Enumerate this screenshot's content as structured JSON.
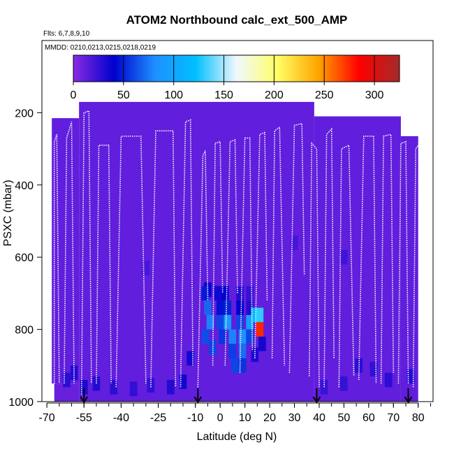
{
  "chart_data": {
    "type": "heatmap",
    "title": "ATOM2 Northbound calc_ext_500_AMP",
    "flights_note": "Flts: 6,7,8,9,10",
    "dates_note": "MMDD: 0210,0213,0215,0218,0219",
    "xlabel": "Latitude (deg N)",
    "ylabel": "PSXC (mbar)",
    "xlim": [
      -72,
      86
    ],
    "ylim": [
      1000,
      0
    ],
    "x_ticks": [
      -70,
      -55,
      -40,
      -25,
      -10,
      0,
      10,
      20,
      30,
      40,
      50,
      60,
      70,
      80
    ],
    "x_tick_labels": [
      "-70",
      "-55",
      "-40",
      "-25",
      "-10",
      "0",
      "10",
      "20",
      "30",
      "40",
      "50",
      "60",
      "70",
      "80"
    ],
    "y_ticks": [
      200,
      400,
      600,
      800,
      1000
    ],
    "y_tick_labels": [
      "200",
      "400",
      "600",
      "800",
      "1000"
    ],
    "colorbar": {
      "min": 0,
      "max": 325,
      "ticks": [
        0,
        50,
        100,
        150,
        200,
        250,
        300
      ],
      "tick_labels": [
        "0",
        "50",
        "100",
        "150",
        "200",
        "250",
        "300"
      ],
      "colors": [
        "#8a2be2",
        "#0000cd",
        "#1e90ff",
        "#00bfff",
        "#f0f8ff",
        "#ffff66",
        "#ffa500",
        "#ff0000",
        "#a52a2a"
      ]
    },
    "profile_arrows_lat": [
      -55,
      -9,
      39,
      76
    ],
    "background_value": 12,
    "regions": [
      {
        "lat": [
          -67,
          -57
        ],
        "p": [
          950,
          1000
        ],
        "value": 10
      },
      {
        "lat": [
          -57,
          38
        ],
        "p": [
          170,
          1000
        ],
        "value": 12
      },
      {
        "lat": [
          38,
          73
        ],
        "p": [
          210,
          1000
        ],
        "value": 12
      },
      {
        "lat": [
          73,
          80
        ],
        "p": [
          265,
          1000
        ],
        "value": 12
      },
      {
        "lat": [
          -68,
          -57
        ],
        "p": [
          215,
          950
        ],
        "value": 12
      }
    ],
    "cells": [
      {
        "lat": -62,
        "p": 940,
        "value": 28
      },
      {
        "lat": -59,
        "p": 920,
        "value": 30
      },
      {
        "lat": -55,
        "p": 960,
        "value": 32
      },
      {
        "lat": -50,
        "p": 950,
        "value": 30
      },
      {
        "lat": -43,
        "p": 960,
        "value": 28
      },
      {
        "lat": -35,
        "p": 965,
        "value": 26
      },
      {
        "lat": -28,
        "p": 955,
        "value": 26
      },
      {
        "lat": -20,
        "p": 960,
        "value": 30
      },
      {
        "lat": -15,
        "p": 945,
        "value": 35
      },
      {
        "lat": -30,
        "p": 630,
        "value": 20
      },
      {
        "lat": -12,
        "p": 880,
        "value": 35
      },
      {
        "lat": -5,
        "p": 690,
        "value": 40
      },
      {
        "lat": -6,
        "p": 700,
        "value": 48
      },
      {
        "lat": -5,
        "p": 740,
        "value": 70
      },
      {
        "lat": -4,
        "p": 780,
        "value": 78
      },
      {
        "lat": -6,
        "p": 820,
        "value": 62
      },
      {
        "lat": -3,
        "p": 850,
        "value": 60
      },
      {
        "lat": -1,
        "p": 700,
        "value": 35
      },
      {
        "lat": 0,
        "p": 740,
        "value": 45
      },
      {
        "lat": 0,
        "p": 780,
        "value": 60
      },
      {
        "lat": 1,
        "p": 820,
        "value": 55
      },
      {
        "lat": 2,
        "p": 700,
        "value": 40
      },
      {
        "lat": 3,
        "p": 740,
        "value": 50
      },
      {
        "lat": 3,
        "p": 780,
        "value": 88
      },
      {
        "lat": 5,
        "p": 820,
        "value": 78
      },
      {
        "lat": 5,
        "p": 860,
        "value": 58
      },
      {
        "lat": 6,
        "p": 900,
        "value": 60
      },
      {
        "lat": 8,
        "p": 700,
        "value": 30
      },
      {
        "lat": 8,
        "p": 740,
        "value": 40
      },
      {
        "lat": 8,
        "p": 780,
        "value": 60
      },
      {
        "lat": 9,
        "p": 820,
        "value": 82
      },
      {
        "lat": 9,
        "p": 860,
        "value": 72
      },
      {
        "lat": 9,
        "p": 900,
        "value": 55
      },
      {
        "lat": 12,
        "p": 700,
        "value": 25
      },
      {
        "lat": 12,
        "p": 740,
        "value": 30
      },
      {
        "lat": 12,
        "p": 780,
        "value": 95
      },
      {
        "lat": 12,
        "p": 820,
        "value": 60
      },
      {
        "lat": 14,
        "p": 760,
        "value": 115
      },
      {
        "lat": 16,
        "p": 760,
        "value": 130
      },
      {
        "lat": 16,
        "p": 800,
        "value": 275
      },
      {
        "lat": 17,
        "p": 840,
        "value": 35
      },
      {
        "lat": 14,
        "p": 870,
        "value": 32
      },
      {
        "lat": 30,
        "p": 560,
        "value": 20
      },
      {
        "lat": 50,
        "p": 600,
        "value": 22
      },
      {
        "lat": 56,
        "p": 900,
        "value": 28
      },
      {
        "lat": 62,
        "p": 910,
        "value": 26
      },
      {
        "lat": 50,
        "p": 950,
        "value": 25
      },
      {
        "lat": 42,
        "p": 960,
        "value": 24
      },
      {
        "lat": 68,
        "p": 940,
        "value": 28
      },
      {
        "lat": 77,
        "p": 930,
        "value": 30
      }
    ],
    "flight_profiles": [
      [
        [
          -67,
          950
        ],
        [
          -67,
          280
        ],
        [
          -66,
          260
        ],
        [
          -65,
          950
        ]
      ],
      [
        [
          -63,
          950
        ],
        [
          -62,
          270
        ],
        [
          -60,
          225
        ],
        [
          -59,
          950
        ]
      ],
      [
        [
          -56,
          980
        ],
        [
          -55,
          200
        ],
        [
          -53,
          195
        ],
        [
          -52,
          950
        ]
      ],
      [
        [
          -50,
          950
        ],
        [
          -49,
          290
        ],
        [
          -45,
          290
        ],
        [
          -44,
          950
        ]
      ],
      [
        [
          -42,
          960
        ],
        [
          -40,
          265
        ],
        [
          -32,
          265
        ],
        [
          -30,
          950
        ]
      ],
      [
        [
          -28,
          960
        ],
        [
          -26,
          250
        ],
        [
          -19,
          250
        ],
        [
          -18,
          960
        ]
      ],
      [
        [
          -16,
          960
        ],
        [
          -14,
          225
        ],
        [
          -12,
          220
        ],
        [
          -11,
          900
        ]
      ],
      [
        [
          -9,
          960
        ],
        [
          -7,
          320
        ],
        [
          -6,
          305
        ],
        [
          -5,
          720
        ]
      ],
      [
        [
          -3,
          900
        ],
        [
          -2,
          285
        ],
        [
          0,
          280
        ],
        [
          1,
          700
        ]
      ],
      [
        [
          2,
          900
        ],
        [
          4,
          280
        ],
        [
          6,
          275
        ],
        [
          7,
          700
        ]
      ],
      [
        [
          8,
          920
        ],
        [
          10,
          270
        ],
        [
          12,
          270
        ],
        [
          13,
          860
        ]
      ],
      [
        [
          14,
          880
        ],
        [
          16,
          260
        ],
        [
          18,
          255
        ],
        [
          19,
          720
        ]
      ],
      [
        [
          21,
          880
        ],
        [
          22,
          250
        ],
        [
          24,
          240
        ],
        [
          26,
          900
        ]
      ],
      [
        [
          28,
          920
        ],
        [
          30,
          235
        ],
        [
          33,
          230
        ],
        [
          34,
          650
        ]
      ],
      [
        [
          36,
          930
        ],
        [
          37,
          285
        ],
        [
          39,
          300
        ],
        [
          40,
          960
        ]
      ],
      [
        [
          42,
          960
        ],
        [
          43,
          260
        ],
        [
          45,
          245
        ],
        [
          46,
          880
        ]
      ],
      [
        [
          48,
          960
        ],
        [
          49,
          300
        ],
        [
          52,
          290
        ],
        [
          54,
          930
        ]
      ],
      [
        [
          56,
          940
        ],
        [
          58,
          265
        ],
        [
          62,
          265
        ],
        [
          63,
          950
        ]
      ],
      [
        [
          65,
          950
        ],
        [
          66,
          265
        ],
        [
          69,
          260
        ],
        [
          70,
          920
        ]
      ],
      [
        [
          72,
          950
        ],
        [
          73,
          285
        ],
        [
          75,
          280
        ],
        [
          76,
          950
        ]
      ],
      [
        [
          78,
          960
        ],
        [
          79,
          300
        ],
        [
          81,
          280
        ],
        [
          82,
          950
        ]
      ]
    ]
  }
}
